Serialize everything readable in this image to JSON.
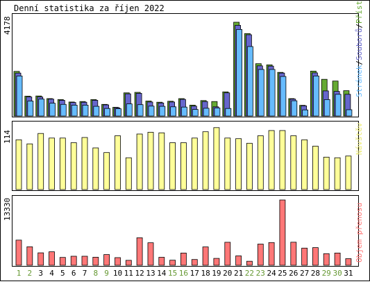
{
  "title": "Denní statistika za říjen 2022",
  "colors": {
    "hits": "#66aa33",
    "files": "#6666cc",
    "pages": "#66bbff",
    "visits": "#ffff99",
    "kbytes": "#ff7777",
    "day_weekday": "#000000",
    "day_weekend": "#669933",
    "frame": "#000000"
  },
  "chart_data": [
    {
      "type": "bar",
      "name": "top-panel",
      "ymax_label": "4178",
      "ylim": [
        0,
        4178
      ],
      "legend": {
        "hits": "Přístupů",
        "separator": "/",
        "files": "Souborů",
        "pages": "Stránek"
      },
      "series": [
        {
          "name": "Přístupů",
          "key": "hits",
          "values": [
            1850,
            820,
            830,
            720,
            680,
            580,
            600,
            680,
            480,
            360,
            960,
            980,
            620,
            570,
            610,
            720,
            450,
            640,
            600,
            1000,
            3890,
            3420,
            2170,
            2120,
            1810,
            720,
            440,
            1860,
            1520,
            1450,
            1050
          ]
        },
        {
          "name": "Souborů",
          "key": "files",
          "values": [
            1780,
            790,
            790,
            700,
            650,
            560,
            570,
            650,
            460,
            340,
            920,
            940,
            580,
            540,
            580,
            690,
            410,
            600,
            380,
            960,
            3760,
            3370,
            2080,
            2070,
            1780,
            700,
            420,
            1790,
            1040,
            1020,
            900
          ]
        },
        {
          "name": "Stránek",
          "key": "pages",
          "values": [
            1660,
            620,
            700,
            530,
            480,
            450,
            450,
            400,
            310,
            300,
            500,
            470,
            410,
            400,
            380,
            370,
            270,
            320,
            330,
            310,
            3590,
            2880,
            1930,
            1930,
            1640,
            630,
            250,
            1660,
            680,
            900,
            260
          ]
        }
      ]
    },
    {
      "type": "bar",
      "name": "middle-panel",
      "ymax_label": "114",
      "ylim": [
        0,
        114
      ],
      "legend": {
        "visits": "Návštěv"
      },
      "series": [
        {
          "name": "Návštěv",
          "key": "visits",
          "values": [
            86,
            79,
            97,
            89,
            89,
            81,
            90,
            72,
            64,
            93,
            55,
            96,
            99,
            98,
            81,
            81,
            89,
            100,
            107,
            89,
            88,
            80,
            93,
            102,
            102,
            93,
            86,
            75,
            56,
            55,
            58
          ]
        }
      ]
    },
    {
      "type": "bar",
      "name": "bottom-panel",
      "ymax_label": "13330",
      "ylim": [
        0,
        13330
      ],
      "legend": {
        "kbytes": "Objem přenosu"
      },
      "series": [
        {
          "name": "Objem přenosu",
          "key": "kbytes",
          "values": [
            5130,
            3770,
            2540,
            2750,
            1600,
            1850,
            1850,
            1640,
            2180,
            1560,
            1010,
            5620,
            4600,
            1630,
            1030,
            2490,
            1180,
            3740,
            1400,
            4700,
            1910,
            820,
            4320,
            4640,
            13330,
            4710,
            3500,
            3600,
            2370,
            2500,
            1350
          ]
        }
      ]
    }
  ],
  "days": [
    {
      "label": "1",
      "weekend": true
    },
    {
      "label": "2",
      "weekend": true
    },
    {
      "label": "3",
      "weekend": false
    },
    {
      "label": "4",
      "weekend": false
    },
    {
      "label": "5",
      "weekend": false
    },
    {
      "label": "6",
      "weekend": false
    },
    {
      "label": "7",
      "weekend": false
    },
    {
      "label": "8",
      "weekend": true
    },
    {
      "label": "9",
      "weekend": true
    },
    {
      "label": "10",
      "weekend": false
    },
    {
      "label": "11",
      "weekend": false
    },
    {
      "label": "12",
      "weekend": false
    },
    {
      "label": "13",
      "weekend": false
    },
    {
      "label": "14",
      "weekend": false
    },
    {
      "label": "15",
      "weekend": true
    },
    {
      "label": "16",
      "weekend": true
    },
    {
      "label": "17",
      "weekend": false
    },
    {
      "label": "18",
      "weekend": false
    },
    {
      "label": "19",
      "weekend": false
    },
    {
      "label": "20",
      "weekend": false
    },
    {
      "label": "21",
      "weekend": false
    },
    {
      "label": "22",
      "weekend": true
    },
    {
      "label": "23",
      "weekend": true
    },
    {
      "label": "24",
      "weekend": false
    },
    {
      "label": "25",
      "weekend": false
    },
    {
      "label": "26",
      "weekend": false
    },
    {
      "label": "27",
      "weekend": false
    },
    {
      "label": "28",
      "weekend": false
    },
    {
      "label": "29",
      "weekend": true
    },
    {
      "label": "30",
      "weekend": true
    },
    {
      "label": "31",
      "weekend": false
    }
  ]
}
